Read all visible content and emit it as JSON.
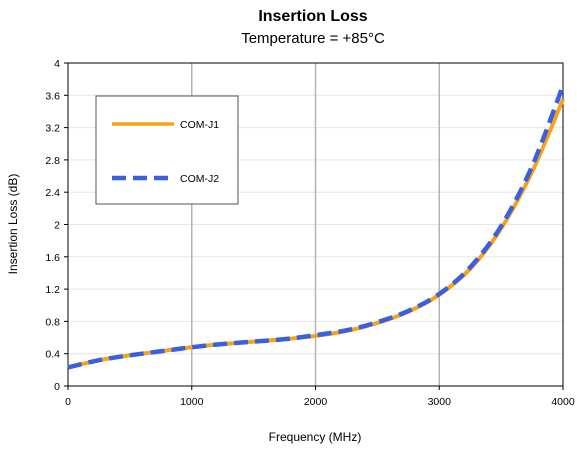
{
  "chart_data": {
    "type": "line",
    "title": "Insertion Loss",
    "subtitle": "Temperature = +85°C",
    "xlabel": "Frequency (MHz)",
    "ylabel": "Insertion Loss (dB)",
    "xlim": [
      0,
      4000
    ],
    "ylim": [
      0,
      4
    ],
    "x_ticks": [
      "0",
      "1000",
      "2000",
      "3000",
      "4000"
    ],
    "y_ticks": [
      "0",
      "0.4",
      "0.8",
      "1.2",
      "1.6",
      "2",
      "2.4",
      "2.8",
      "3.2",
      "3.6",
      "4"
    ],
    "grid": "vertical",
    "legend_position": "top-left",
    "x": [
      0,
      250,
      500,
      750,
      1000,
      1250,
      1500,
      1750,
      2000,
      2250,
      2500,
      2750,
      3000,
      3250,
      3500,
      3750,
      4000
    ],
    "series": [
      {
        "name": "COM-J1",
        "color": "#F7A21B",
        "style": "solid",
        "values": [
          0.23,
          0.32,
          0.38,
          0.43,
          0.48,
          0.52,
          0.55,
          0.58,
          0.62,
          0.68,
          0.78,
          0.92,
          1.13,
          1.45,
          1.95,
          2.65,
          3.55
        ]
      },
      {
        "name": "COM-J2",
        "color": "#3A5FE0",
        "style": "dashed",
        "values": [
          0.23,
          0.32,
          0.38,
          0.43,
          0.48,
          0.52,
          0.55,
          0.58,
          0.63,
          0.69,
          0.79,
          0.93,
          1.14,
          1.47,
          1.98,
          2.72,
          3.72
        ]
      }
    ]
  }
}
